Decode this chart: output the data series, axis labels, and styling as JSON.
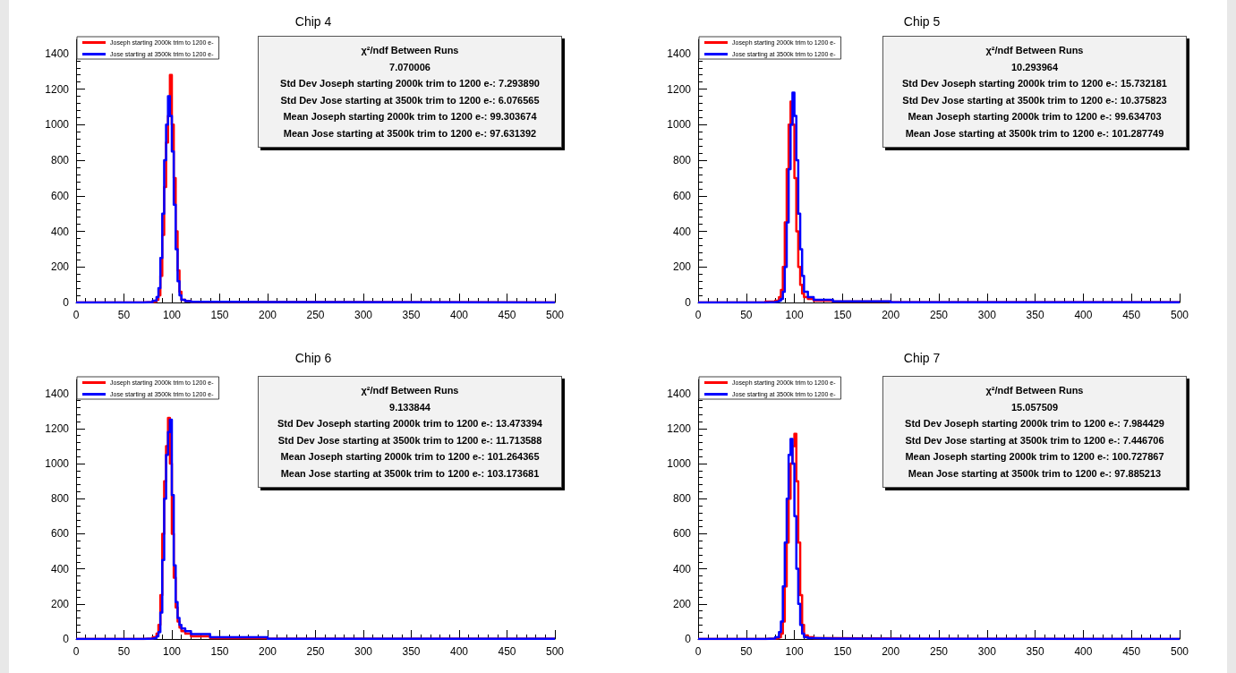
{
  "chart_data": [
    {
      "type": "histogram",
      "title": "Chip 4",
      "bins": [
        0,
        70,
        80,
        84,
        86,
        88,
        90,
        92,
        94,
        96,
        98,
        100,
        102,
        104,
        106,
        108,
        110,
        114,
        120,
        140,
        200,
        500
      ],
      "xlim": [
        0,
        500
      ],
      "xticks": [
        0,
        50,
        100,
        150,
        200,
        250,
        300,
        350,
        400,
        450,
        500
      ],
      "ylim": [
        0,
        1480
      ],
      "yticks": [
        0,
        200,
        400,
        600,
        800,
        1000,
        1200,
        1400
      ],
      "grid": false,
      "legend": "top left",
      "series": [
        {
          "name": "Joseph starting 2000k trim to 1200 e-",
          "color": "#ff0000",
          "values": [
            0,
            2,
            5,
            15,
            40,
            150,
            380,
            650,
            900,
            1050,
            1280,
            1000,
            700,
            400,
            180,
            60,
            15,
            8,
            4,
            2,
            0
          ]
        },
        {
          "name": "Jose starting at 3500k trim to 1200 e-",
          "color": "#0000ff",
          "values": [
            0,
            3,
            10,
            30,
            80,
            250,
            500,
            800,
            1000,
            1160,
            1050,
            850,
            550,
            300,
            120,
            40,
            15,
            8,
            4,
            2,
            0
          ]
        }
      ],
      "annotations": [
        "χ²/ndf Between Runs",
        "7.070006",
        "Std Dev Joseph starting 2000k trim to 1200 e-: 7.293890",
        "Std Dev Jose starting at 3500k trim to 1200 e-: 6.076565",
        "Mean Joseph starting 2000k trim to 1200 e-: 99.303674",
        "Mean Jose starting at 3500k trim to 1200 e-: 97.631392"
      ]
    },
    {
      "type": "histogram",
      "title": "Chip 5",
      "bins": [
        0,
        70,
        80,
        84,
        86,
        88,
        90,
        92,
        94,
        96,
        98,
        100,
        102,
        104,
        106,
        108,
        110,
        114,
        120,
        140,
        200,
        500
      ],
      "xlim": [
        0,
        500
      ],
      "xticks": [
        0,
        50,
        100,
        150,
        200,
        250,
        300,
        350,
        400,
        450,
        500
      ],
      "ylim": [
        0,
        1480
      ],
      "yticks": [
        0,
        200,
        400,
        600,
        800,
        1000,
        1200,
        1400
      ],
      "grid": false,
      "legend": "top left",
      "series": [
        {
          "name": "Joseph starting 2000k trim to 1200 e-",
          "color": "#ff0000",
          "values": [
            0,
            5,
            10,
            30,
            70,
            200,
            450,
            750,
            1000,
            1130,
            1000,
            700,
            400,
            200,
            100,
            50,
            30,
            20,
            10,
            5,
            1
          ]
        },
        {
          "name": "Jose starting at 3500k trim to 1200 e-",
          "color": "#0000ff",
          "values": [
            0,
            2,
            5,
            10,
            20,
            60,
            200,
            450,
            750,
            1000,
            1180,
            1050,
            800,
            500,
            300,
            150,
            60,
            30,
            15,
            6,
            1
          ]
        }
      ],
      "annotations": [
        "χ²/ndf Between Runs",
        "10.293964",
        "Std Dev Joseph starting 2000k trim to 1200 e-: 15.732181",
        "Std Dev Jose starting at 3500k trim to 1200 e-: 10.375823",
        "Mean Joseph starting 2000k trim to 1200 e-: 99.634703",
        "Mean Jose starting at 3500k trim to 1200 e-: 101.287749"
      ]
    },
    {
      "type": "histogram",
      "title": "Chip 6",
      "bins": [
        0,
        70,
        80,
        84,
        86,
        88,
        90,
        92,
        94,
        96,
        98,
        100,
        102,
        104,
        106,
        108,
        110,
        114,
        120,
        140,
        200,
        500
      ],
      "xlim": [
        0,
        500
      ],
      "xticks": [
        0,
        50,
        100,
        150,
        200,
        250,
        300,
        350,
        400,
        450,
        500
      ],
      "ylim": [
        0,
        1480
      ],
      "yticks": [
        0,
        200,
        400,
        600,
        800,
        1000,
        1200,
        1400
      ],
      "grid": false,
      "legend": "top left",
      "series": [
        {
          "name": "Joseph starting 2000k trim to 1200 e-",
          "color": "#ff0000",
          "values": [
            0,
            3,
            10,
            30,
            80,
            250,
            600,
            900,
            1100,
            1260,
            1000,
            600,
            350,
            180,
            100,
            65,
            45,
            30,
            15,
            5,
            1
          ]
        },
        {
          "name": "Jose starting at 3500k trim to 1200 e-",
          "color": "#0000ff",
          "values": [
            0,
            2,
            5,
            15,
            40,
            150,
            450,
            800,
            1050,
            1180,
            1250,
            820,
            420,
            210,
            120,
            80,
            60,
            45,
            28,
            10,
            1
          ]
        }
      ],
      "annotations": [
        "χ²/ndf Between Runs",
        "9.133844",
        "Std Dev Joseph starting 2000k trim to 1200 e-: 13.473394",
        "Std Dev Jose starting at 3500k trim to 1200 e-: 11.713588",
        "Mean Joseph starting 2000k trim to 1200 e-: 101.264365",
        "Mean Jose starting at 3500k trim to 1200 e-: 103.173681"
      ]
    },
    {
      "type": "histogram",
      "title": "Chip 7",
      "bins": [
        0,
        70,
        80,
        84,
        86,
        88,
        90,
        92,
        94,
        96,
        98,
        100,
        102,
        104,
        106,
        108,
        110,
        114,
        120,
        140,
        200,
        500
      ],
      "xlim": [
        0,
        500
      ],
      "xticks": [
        0,
        50,
        100,
        150,
        200,
        250,
        300,
        350,
        400,
        450,
        500
      ],
      "ylim": [
        0,
        1480
      ],
      "yticks": [
        0,
        200,
        400,
        600,
        800,
        1000,
        1200,
        1400
      ],
      "grid": false,
      "legend": "top left",
      "series": [
        {
          "name": "Joseph starting 2000k trim to 1200 e-",
          "color": "#ff0000",
          "values": [
            0,
            2,
            5,
            10,
            30,
            100,
            300,
            550,
            800,
            1000,
            1100,
            1170,
            900,
            550,
            250,
            80,
            20,
            10,
            5,
            2,
            0
          ]
        },
        {
          "name": "Jose starting at 3500k trim to 1200 e-",
          "color": "#0000ff",
          "values": [
            0,
            3,
            10,
            40,
            100,
            300,
            550,
            800,
            1050,
            1140,
            1000,
            700,
            400,
            200,
            80,
            30,
            10,
            5,
            3,
            1,
            0
          ]
        }
      ],
      "annotations": [
        "χ²/ndf Between Runs",
        "15.057509",
        "Std Dev Joseph starting 2000k trim to 1200 e-: 7.984429",
        "Std Dev Jose starting at 3500k trim to 1200 e-: 7.446706",
        "Mean Joseph starting 2000k trim to 1200 e-: 100.727867",
        "Mean Jose starting at 3500k trim to 1200 e-: 97.885213"
      ]
    }
  ]
}
